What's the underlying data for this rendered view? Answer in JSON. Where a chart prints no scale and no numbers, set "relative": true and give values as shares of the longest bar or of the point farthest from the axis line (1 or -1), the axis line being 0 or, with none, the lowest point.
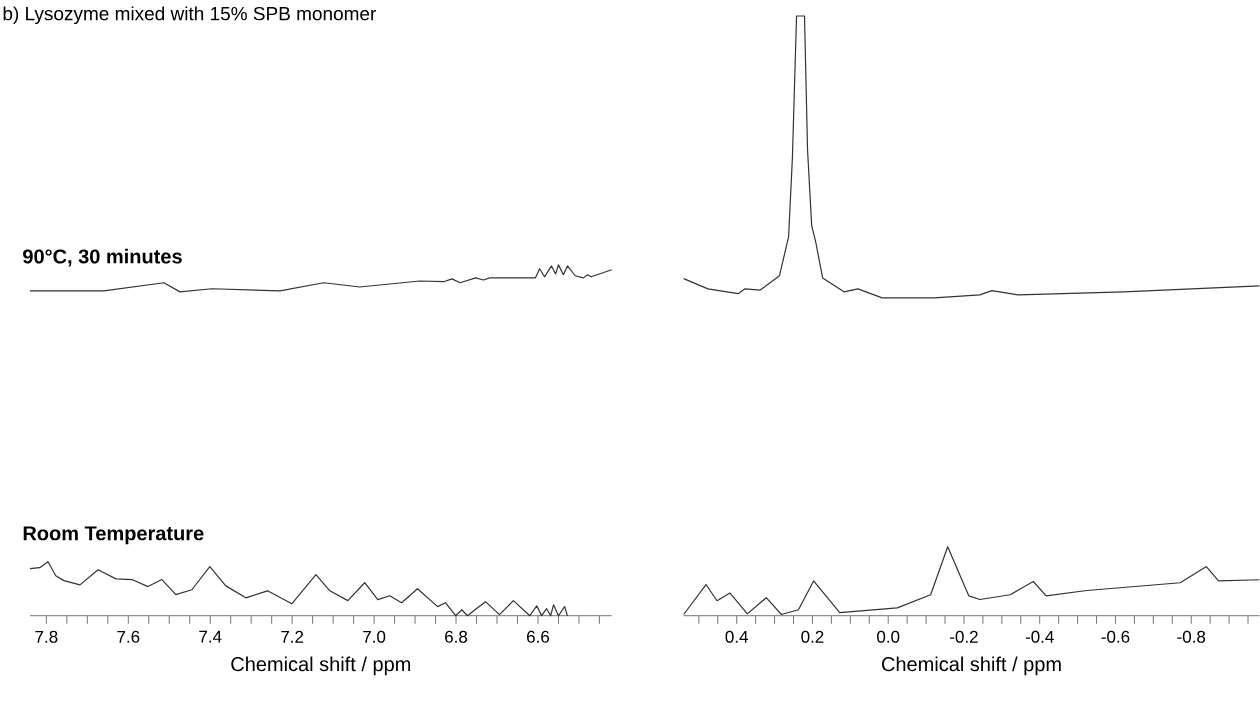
{
  "chart_data": [
    {
      "type": "line",
      "title": "b)  Lysozyme mixed with 15% SPB monomer",
      "xlabel": "Chemical shift / ppm",
      "relative": true,
      "marker": "none",
      "line_style": "solid",
      "xlim": [
        7.84,
        6.42
      ],
      "xticks": [
        {
          "value": 7.8,
          "label": "7.8"
        },
        {
          "value": 7.75,
          "label": null
        },
        {
          "value": 7.7,
          "label": null
        },
        {
          "value": 7.65,
          "label": null
        },
        {
          "value": 7.6,
          "label": "7.6"
        },
        {
          "value": 7.55,
          "label": null
        },
        {
          "value": 7.5,
          "label": null
        },
        {
          "value": 7.45,
          "label": null
        },
        {
          "value": 7.4,
          "label": "7.4"
        },
        {
          "value": 7.35,
          "label": null
        },
        {
          "value": 7.3,
          "label": null
        },
        {
          "value": 7.25,
          "label": null
        },
        {
          "value": 7.2,
          "label": "7.2"
        },
        {
          "value": 7.15,
          "label": null
        },
        {
          "value": 7.1,
          "label": null
        },
        {
          "value": 7.05,
          "label": null
        },
        {
          "value": 7.0,
          "label": "7.0"
        },
        {
          "value": 6.95,
          "label": null
        },
        {
          "value": 6.9,
          "label": null
        },
        {
          "value": 6.85,
          "label": null
        },
        {
          "value": 6.8,
          "label": "6.8"
        },
        {
          "value": 6.75,
          "label": null
        },
        {
          "value": 6.7,
          "label": null
        },
        {
          "value": 6.65,
          "label": null
        },
        {
          "value": 6.6,
          "label": "6.6"
        },
        {
          "value": 6.55,
          "label": null
        },
        {
          "value": 6.5,
          "label": null
        },
        {
          "value": 6.45,
          "label": null
        }
      ],
      "series": [
        {
          "name": "90°C, 30 minutes",
          "color": "#333333",
          "x": [
            7.84,
            7.66,
            7.513,
            7.474,
            7.396,
            7.23,
            7.123,
            7.035,
            6.889,
            6.83,
            6.81,
            6.79,
            6.752,
            6.733,
            6.718,
            6.606,
            6.596,
            6.584,
            6.567,
            6.557,
            6.55,
            6.538,
            6.528,
            6.509,
            6.489,
            6.479,
            6.47,
            6.42
          ],
          "values": [
            0.926,
            0.926,
            0.949,
            0.923,
            0.932,
            0.926,
            0.949,
            0.937,
            0.954,
            0.952,
            0.96,
            0.949,
            0.963,
            0.957,
            0.963,
            0.963,
            0.989,
            0.966,
            0.997,
            0.974,
            1.0,
            0.972,
            0.997,
            0.969,
            0.963,
            0.972,
            0.966,
            0.986
          ]
        },
        {
          "name": "Room Temperature",
          "color": "#333333",
          "x": [
            7.84,
            7.816,
            7.796,
            7.777,
            7.757,
            7.718,
            7.674,
            7.63,
            7.591,
            7.552,
            7.518,
            7.484,
            7.445,
            7.401,
            7.362,
            7.313,
            7.26,
            7.201,
            7.142,
            7.108,
            7.064,
            7.023,
            6.991,
            6.962,
            6.933,
            6.894,
            6.845,
            6.826,
            6.801,
            6.786,
            6.772,
            6.757,
            6.728,
            6.694,
            6.66,
            6.62,
            6.603,
            6.591,
            6.579,
            6.569,
            6.562,
            6.55,
            6.535,
            6.528
          ],
          "values": [
            0.134,
            0.137,
            0.154,
            0.114,
            0.1,
            0.088,
            0.131,
            0.105,
            0.103,
            0.083,
            0.103,
            0.06,
            0.074,
            0.14,
            0.085,
            0.051,
            0.071,
            0.034,
            0.117,
            0.071,
            0.043,
            0.094,
            0.046,
            0.057,
            0.037,
            0.077,
            0.026,
            0.037,
            0.0,
            0.017,
            0.0,
            0.014,
            0.04,
            0.003,
            0.043,
            0.0,
            0.028,
            0.0,
            0.02,
            0.0,
            0.031,
            0.0,
            0.026,
            0.0
          ]
        }
      ]
    },
    {
      "type": "line",
      "xlabel": "Chemical shift / ppm",
      "relative": true,
      "marker": "none",
      "line_style": "solid",
      "xlim": [
        0.54,
        -0.98
      ],
      "xticks": [
        {
          "value": 0.5,
          "label": null
        },
        {
          "value": 0.45,
          "label": null
        },
        {
          "value": 0.4,
          "label": "0.4"
        },
        {
          "value": 0.35,
          "label": null
        },
        {
          "value": 0.3,
          "label": null
        },
        {
          "value": 0.25,
          "label": null
        },
        {
          "value": 0.2,
          "label": "0.2"
        },
        {
          "value": 0.15,
          "label": null
        },
        {
          "value": 0.1,
          "label": null
        },
        {
          "value": 0.05,
          "label": null
        },
        {
          "value": 0.0,
          "label": "0.0"
        },
        {
          "value": -0.05,
          "label": null
        },
        {
          "value": -0.1,
          "label": null
        },
        {
          "value": -0.15,
          "label": null
        },
        {
          "value": -0.2,
          "label": "-0.2"
        },
        {
          "value": -0.25,
          "label": null
        },
        {
          "value": -0.3,
          "label": null
        },
        {
          "value": -0.35,
          "label": null
        },
        {
          "value": -0.4,
          "label": "-0.4"
        },
        {
          "value": -0.45,
          "label": null
        },
        {
          "value": -0.5,
          "label": null
        },
        {
          "value": -0.55,
          "label": null
        },
        {
          "value": -0.6,
          "label": "-0.6"
        },
        {
          "value": -0.65,
          "label": null
        },
        {
          "value": -0.7,
          "label": null
        },
        {
          "value": -0.75,
          "label": null
        },
        {
          "value": -0.8,
          "label": "-0.8"
        },
        {
          "value": -0.85,
          "label": null
        },
        {
          "value": -0.9,
          "label": null
        },
        {
          "value": -0.95,
          "label": null
        }
      ],
      "series": [
        {
          "color": "#333333",
          "x": [
            0.54,
            0.476,
            0.396,
            0.378,
            0.338,
            0.287,
            0.263,
            0.253,
            0.242,
            0.221,
            0.213,
            0.202,
            0.192,
            0.173,
            0.117,
            0.08,
            0.016,
            -0.122,
            -0.242,
            -0.274,
            -0.343,
            -0.622,
            -0.98
          ],
          "values": [
            0.562,
            0.545,
            0.537,
            0.545,
            0.543,
            0.567,
            0.632,
            0.763,
            1.0,
            1.0,
            0.777,
            0.65,
            0.625,
            0.563,
            0.54,
            0.545,
            0.53,
            0.53,
            0.535,
            0.542,
            0.535,
            0.54,
            0.55
          ]
        },
        {
          "color": "#333333",
          "x": [
            0.54,
            0.481,
            0.452,
            0.418,
            0.372,
            0.322,
            0.282,
            0.237,
            0.197,
            0.128,
            -0.024,
            -0.112,
            -0.157,
            -0.213,
            -0.242,
            -0.322,
            -0.383,
            -0.417,
            -0.524,
            -0.771,
            -0.84,
            -0.872,
            -0.98
          ],
          "values": [
            0.002,
            0.052,
            0.025,
            0.038,
            0.003,
            0.03,
            0.002,
            0.01,
            0.058,
            0.005,
            0.013,
            0.035,
            0.115,
            0.033,
            0.027,
            0.035,
            0.057,
            0.033,
            0.042,
            0.055,
            0.082,
            0.058,
            0.06
          ]
        }
      ]
    }
  ]
}
